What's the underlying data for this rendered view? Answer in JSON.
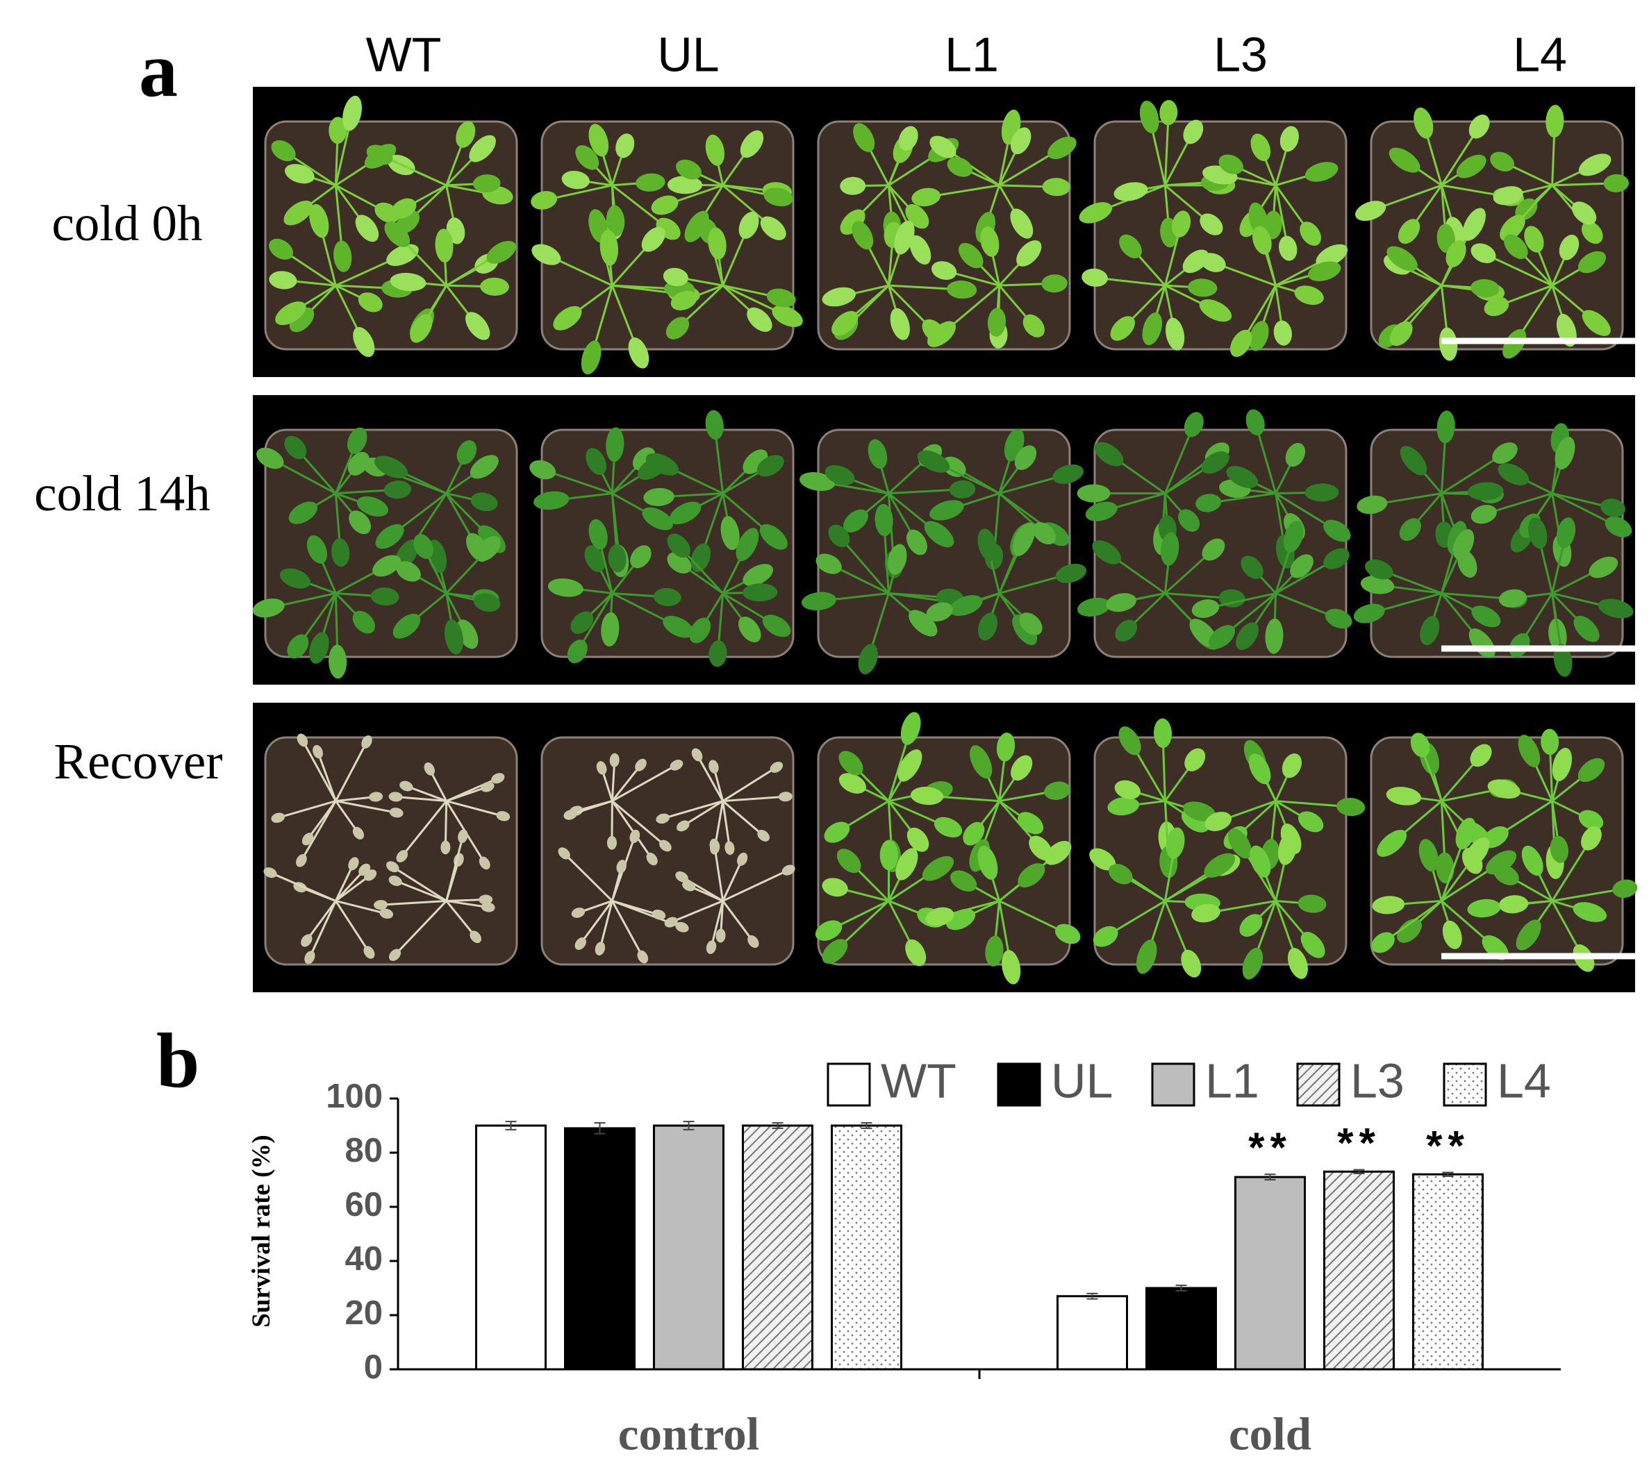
{
  "panel_labels": [
    "a",
    "b"
  ],
  "photo_panel": {
    "columns": [
      "WT",
      "UL",
      "L1",
      "L3",
      "L4"
    ],
    "rows": [
      "cold 0h",
      "cold 14h",
      "Recover"
    ]
  },
  "chart_data": {
    "type": "bar",
    "ylabel": "Survival rate (%)",
    "categories": [
      "control",
      "cold"
    ],
    "series": [
      {
        "name": "WT",
        "color": "#ffffff",
        "pattern": "solid",
        "values": [
          90,
          27
        ],
        "errors": [
          1.5,
          1
        ],
        "annotations": [
          null,
          null
        ]
      },
      {
        "name": "UL",
        "color": "#000000",
        "pattern": "solid",
        "values": [
          89,
          30
        ],
        "errors": [
          2,
          1
        ],
        "annotations": [
          null,
          null
        ]
      },
      {
        "name": "L1",
        "color": "#bdbdbd",
        "pattern": "solid",
        "values": [
          90,
          71
        ],
        "errors": [
          1.5,
          1
        ],
        "annotations": [
          null,
          "**"
        ]
      },
      {
        "name": "L3",
        "color": "#9a9a9a",
        "pattern": "hatch",
        "values": [
          90,
          73
        ],
        "errors": [
          1,
          0.7
        ],
        "annotations": [
          null,
          "**"
        ]
      },
      {
        "name": "L4",
        "color": "#7a7a7a",
        "pattern": "dots",
        "values": [
          90,
          72
        ],
        "errors": [
          1,
          0.7
        ],
        "annotations": [
          null,
          "**"
        ]
      }
    ],
    "ylim": [
      0,
      100
    ],
    "yticks": [
      0,
      20,
      40,
      60,
      80,
      100
    ],
    "grid": false,
    "legend": "upper right"
  }
}
